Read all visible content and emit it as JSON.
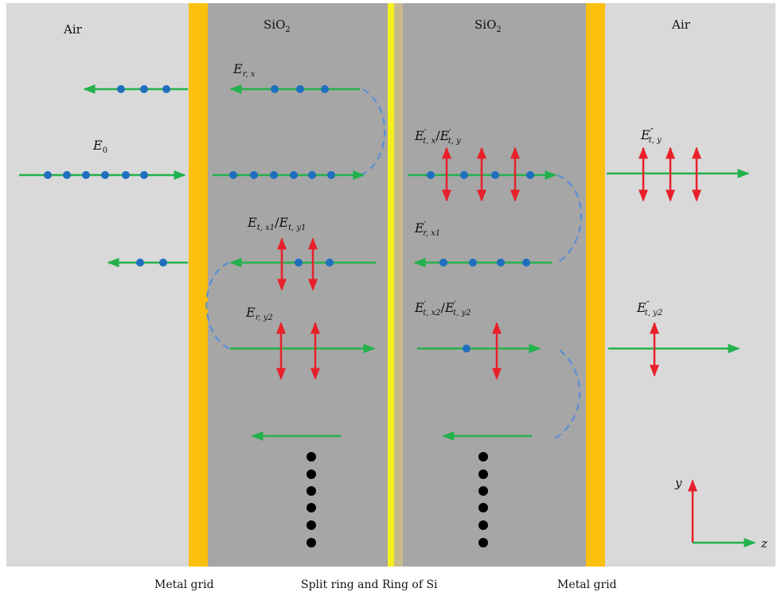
{
  "regions": {
    "air_left": "Air",
    "sio2_left": "SiO",
    "sio2_left_sub": "2",
    "sio2_right": "SiO",
    "sio2_right_sub": "2",
    "air_right": "Air"
  },
  "bottom_labels": {
    "metal_grid_left": "Metal grid",
    "split_ring": "Split ring and Ring of Si",
    "metal_grid_right": "Metal grid"
  },
  "field_labels": {
    "E0": {
      "main": "E",
      "sub": "0",
      "prime": ""
    },
    "Erx": {
      "main": "E",
      "sub": "r, x",
      "prime": ""
    },
    "Etx1_Ety1": {
      "main": "E",
      "sub": "t, x1",
      "prime": "",
      "sep": "/",
      "main2": "E",
      "sub2": "t, y1",
      "prime2": ""
    },
    "Ery2": {
      "main": "E",
      "sub": "r, y2",
      "prime": ""
    },
    "Etx_Ety_p": {
      "main": "E",
      "sub": "t, x",
      "prime": "′",
      "sep": "/",
      "main2": "E",
      "sub2": "t, y",
      "prime2": "′"
    },
    "Erx1_p": {
      "main": "E",
      "sub": "r, x1",
      "prime": "′"
    },
    "Etx2_Ety2_p": {
      "main": "E",
      "sub": "t, x2",
      "prime": "′",
      "sep": "/",
      "main2": "E",
      "sub2": "t, y2",
      "prime2": "′"
    },
    "Ety_pp": {
      "main": "E",
      "sub": "t, y",
      "prime": "″"
    },
    "Ety2_pp": {
      "main": "E",
      "sub": "t, y2",
      "prime": "″"
    }
  },
  "axes": {
    "y": "y",
    "z": "z"
  },
  "colors": {
    "air": "#d9d9d9",
    "sio2": "#a6a6a6",
    "metal": "#fbbf0e",
    "split_ring": "#f5ef1c",
    "si": "#c8b98d",
    "green_arrow": "#22b14c",
    "red_arrow": "#e8202a",
    "blue_dot": "#1f6fbf",
    "dashed": "#5b8fd4",
    "black_dot": "#000000"
  }
}
